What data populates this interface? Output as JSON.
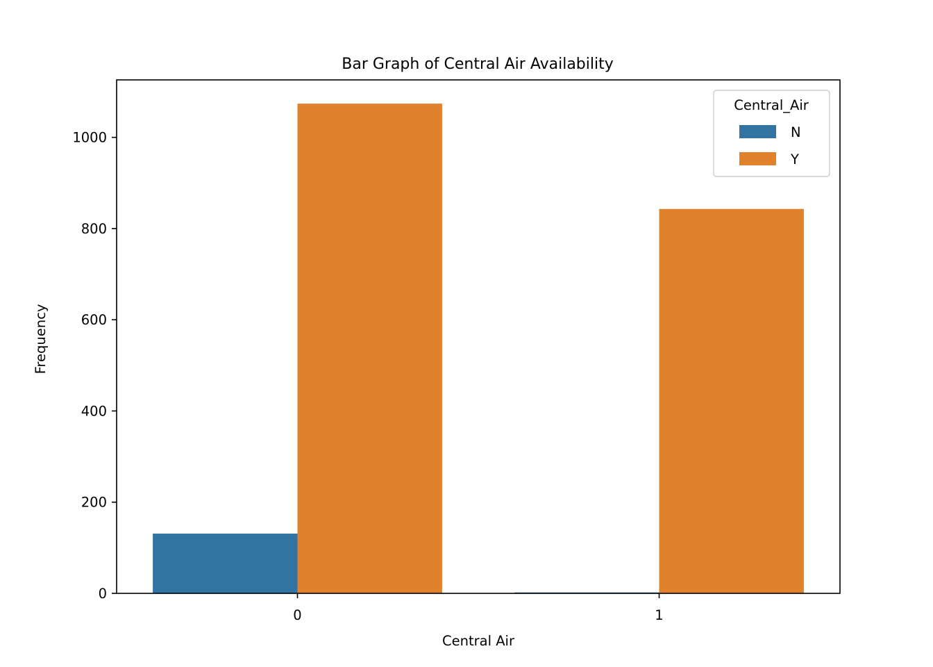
{
  "chart_data": {
    "type": "bar",
    "title": "Bar Graph of Central Air Availability",
    "xlabel": "Central Air",
    "ylabel": "Frequency",
    "categories": [
      "0",
      "1"
    ],
    "series": [
      {
        "name": "N",
        "color": "#3274a1",
        "values": [
          131,
          2
        ]
      },
      {
        "name": "Y",
        "color": "#e1812c",
        "values": [
          1074,
          843
        ]
      }
    ],
    "ylim": [
      0,
      1126
    ],
    "yticks": [
      0,
      200,
      400,
      600,
      800,
      1000
    ],
    "legend": {
      "title": "Central_Air",
      "position": "top-right"
    },
    "grid": false
  }
}
